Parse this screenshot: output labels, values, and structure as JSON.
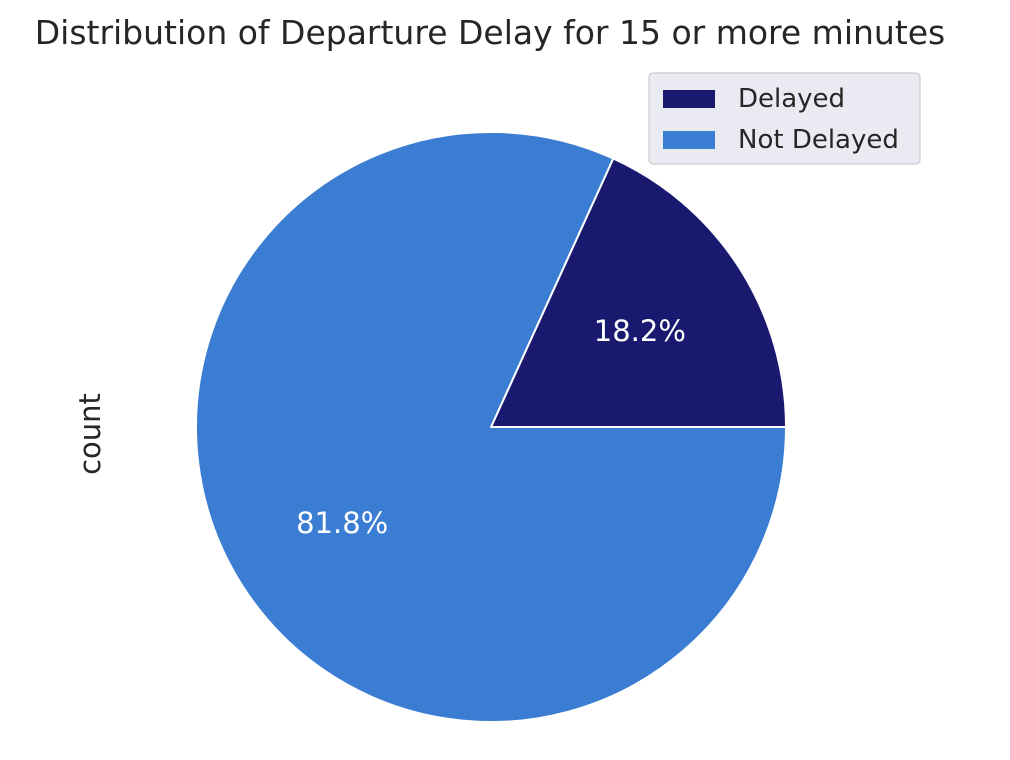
{
  "chart_data": {
    "type": "pie",
    "title": "Distribution of Departure Delay for 15 or more minutes",
    "ylabel": "count",
    "labels": [
      "Delayed",
      "Not Delayed"
    ],
    "values": [
      18.2,
      81.8
    ],
    "value_labels": [
      "18.2%",
      "81.8%"
    ],
    "colors": [
      "#191970",
      "#3a7dd2"
    ],
    "start_angle_deg": 0,
    "direction": "counterclockwise",
    "legend_position": "upper right"
  }
}
